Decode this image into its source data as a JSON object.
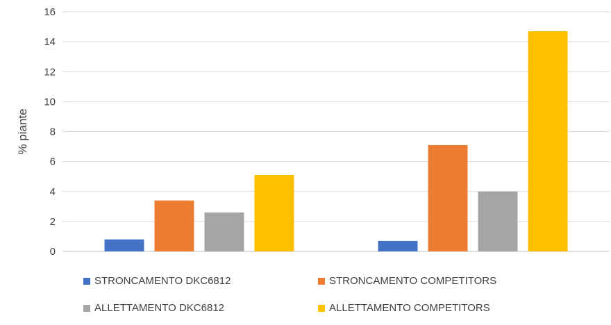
{
  "chart_data": {
    "type": "bar",
    "title": "",
    "xlabel": "",
    "ylabel": "% piante",
    "categories": [
      "",
      ""
    ],
    "ylim": [
      0,
      16
    ],
    "yticks": [
      0,
      2,
      4,
      6,
      8,
      10,
      12,
      14,
      16
    ],
    "grid": true,
    "legend_position": "bottom",
    "series": [
      {
        "name": "STRONCAMENTO DKC6812",
        "color": "#4472C4",
        "values": [
          0.8,
          0.7
        ]
      },
      {
        "name": "STRONCAMENTO COMPETITORS",
        "color": "#ED7D31",
        "values": [
          3.4,
          7.1
        ]
      },
      {
        "name": "ALLETTAMENTO DKC6812",
        "color": "#A5A5A5",
        "values": [
          2.6,
          4.0
        ]
      },
      {
        "name": "ALLETTAMENTO COMPETITORS",
        "color": "#FFC000",
        "values": [
          5.1,
          14.7
        ]
      }
    ]
  }
}
